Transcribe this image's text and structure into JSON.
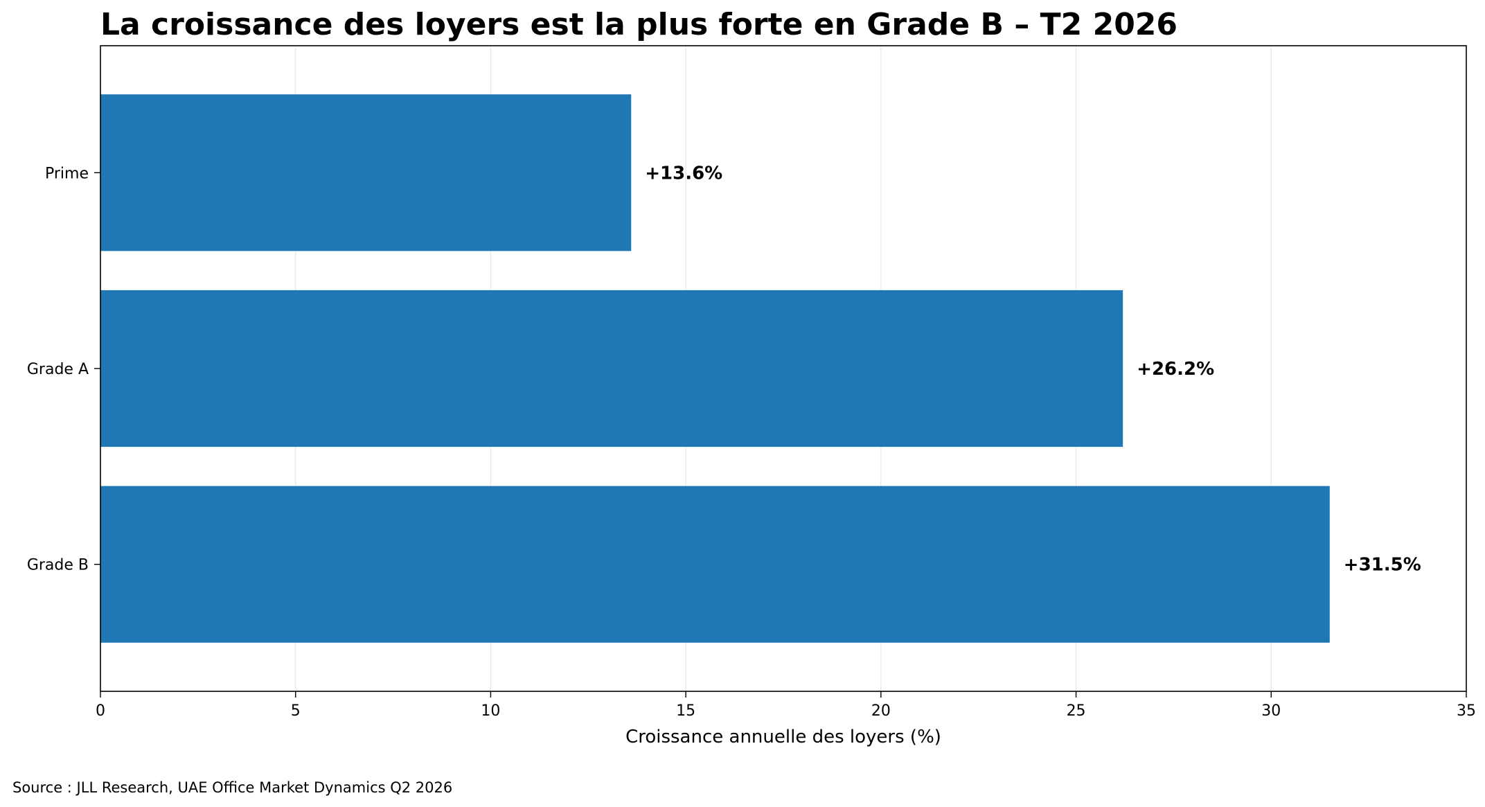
{
  "chart_data": {
    "type": "bar",
    "orientation": "horizontal",
    "title": "La croissance des loyers est la plus forte en Grade B – T2 2026",
    "xlabel": "Croissance annuelle des loyers (%)",
    "ylabel": "",
    "categories": [
      "Prime",
      "Grade A",
      "Grade B"
    ],
    "values": [
      13.6,
      26.2,
      31.5
    ],
    "data_labels": [
      "+13.6%",
      "+26.2%",
      "+31.5%"
    ],
    "xlim": [
      0,
      35
    ],
    "xticks": [
      0,
      5,
      10,
      15,
      20,
      25,
      30,
      35
    ],
    "xtick_labels": [
      "0",
      "5",
      "10",
      "15",
      "20",
      "25",
      "30",
      "35"
    ],
    "grid": "vertical",
    "legend": "none",
    "bar_color": "#1f77b4",
    "source": "Source : JLL Research, UAE Office Market Dynamics Q2 2026"
  }
}
